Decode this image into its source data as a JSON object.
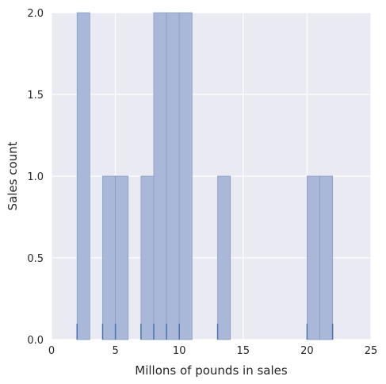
{
  "chart_data": {
    "type": "bar",
    "title": "",
    "xlabel": "Millons of pounds in sales",
    "ylabel": "Sales count",
    "xlim": [
      0,
      25
    ],
    "ylim": [
      0,
      2.0
    ],
    "x_ticks": [
      0,
      5,
      10,
      15,
      20,
      25
    ],
    "x_tick_labels": [
      "0",
      "5",
      "10",
      "15",
      "20",
      "25"
    ],
    "y_ticks": [
      0.0,
      0.5,
      1.0,
      1.5,
      2.0
    ],
    "y_tick_labels": [
      "0.0",
      "0.5",
      "1.0",
      "1.5",
      "2.0"
    ],
    "grid": true,
    "legend": "none",
    "colors": {
      "background": "#eaeaf2",
      "grid": "#ffffff",
      "bar_fill": "#a9b8d8",
      "bar_edge": "#8a9cc4",
      "rug": "#4c72b0",
      "text": "#262626"
    },
    "bins": [
      {
        "start": 2,
        "end": 3,
        "count": 2
      },
      {
        "start": 4,
        "end": 5,
        "count": 1
      },
      {
        "start": 5,
        "end": 6,
        "count": 1
      },
      {
        "start": 7,
        "end": 8,
        "count": 1
      },
      {
        "start": 8,
        "end": 9,
        "count": 2
      },
      {
        "start": 9,
        "end": 10,
        "count": 2
      },
      {
        "start": 10,
        "end": 11,
        "count": 2
      },
      {
        "start": 13,
        "end": 14,
        "count": 1
      },
      {
        "start": 20,
        "end": 21,
        "count": 1
      },
      {
        "start": 21,
        "end": 22,
        "count": 1
      }
    ],
    "rug_values": [
      2,
      4,
      5,
      7,
      8,
      9,
      10,
      13,
      20,
      22
    ]
  }
}
